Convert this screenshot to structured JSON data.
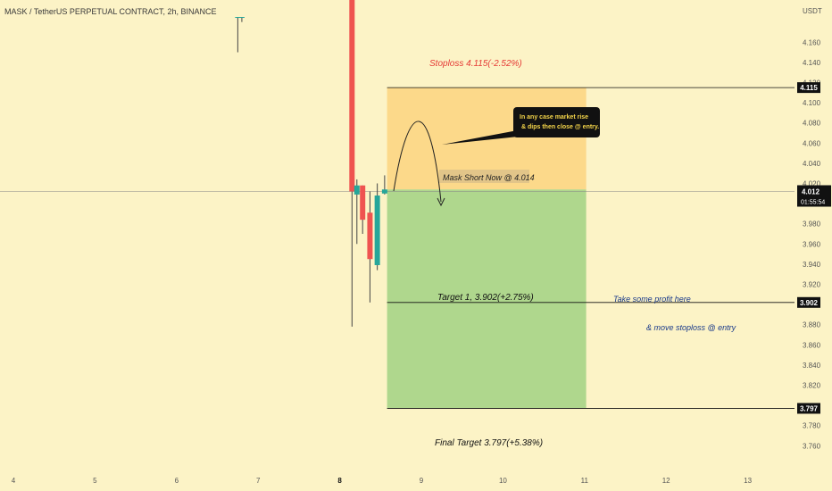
{
  "header": {
    "symbol_title": "MASK / TetherUS PERPETUAL CONTRACT, 2h, BINANCE"
  },
  "axis": {
    "currency": "USDT",
    "price_ticks": [
      4.16,
      4.14,
      4.12,
      4.1,
      4.08,
      4.06,
      4.04,
      4.02,
      3.98,
      3.96,
      3.94,
      3.92,
      3.88,
      3.86,
      3.84,
      3.82,
      3.78,
      3.76
    ],
    "time_ticks": [
      "4",
      "5",
      "6",
      "7",
      "8",
      "9",
      "10",
      "11",
      "12",
      "13"
    ]
  },
  "price_tags": {
    "stoploss": "4.115",
    "current_price": "4.012",
    "countdown": "01:55:54",
    "target1": "3.902",
    "final_target": "3.797"
  },
  "annotations": {
    "stoploss_label": "Stoploss 4.115(-2.52%)",
    "entry_label": "Mask Short Now @ 4.014",
    "target1_label": "Target 1, 3.902(+2.75%)",
    "final_target_label": "Final Target 3.797(+5.38%)",
    "profit_note": "Take some profit here",
    "stoploss_move_note": "& move stoploss @ entry",
    "callout_line1": "In any case market rise",
    "callout_line2": "& dips then close @ entry."
  },
  "colors": {
    "background": "#fcf3c6",
    "risk_zone": "#fcd98a",
    "reward_zone": "#afd78d",
    "bull_candle": "#26a69a",
    "bear_candle": "#ef5350",
    "stoploss_text": "#e53935",
    "note_text": "#1a3a8a"
  },
  "chart_data": {
    "type": "candlestick",
    "instrument": "MASK / TetherUS PERPETUAL CONTRACT",
    "timeframe": "2h",
    "exchange": "BINANCE",
    "y_unit": "USDT",
    "ylim": [
      3.755,
      4.19
    ],
    "x_ticks": [
      4,
      5,
      6,
      7,
      8,
      9,
      10,
      11,
      12,
      13
    ],
    "candles": [
      {
        "x": 6.75,
        "open": 4.185,
        "high": 4.185,
        "low": 4.15,
        "close": 4.185
      },
      {
        "x": 6.8,
        "open": 4.185,
        "high": 4.185,
        "low": 4.18,
        "close": 4.185
      },
      {
        "x": 8.15,
        "open": 4.25,
        "high": 4.25,
        "low": 3.878,
        "close": 4.012
      },
      {
        "x": 8.21,
        "open": 4.009,
        "high": 4.024,
        "low": 3.96,
        "close": 4.018
      },
      {
        "x": 8.28,
        "open": 4.018,
        "high": 4.018,
        "low": 3.97,
        "close": 3.984
      },
      {
        "x": 8.37,
        "open": 3.991,
        "high": 4.012,
        "low": 3.902,
        "close": 3.945
      },
      {
        "x": 8.46,
        "open": 3.939,
        "high": 4.02,
        "low": 3.934,
        "close": 4.008
      },
      {
        "x": 8.55,
        "open": 4.01,
        "high": 4.028,
        "low": 4.009,
        "close": 4.014
      }
    ],
    "position": {
      "side": "short",
      "entry": 4.014,
      "stoploss": 4.115,
      "target1": 3.902,
      "final_target": 3.797,
      "x_start": 8.58,
      "x_end": 11.02
    },
    "current_price": 4.012
  }
}
